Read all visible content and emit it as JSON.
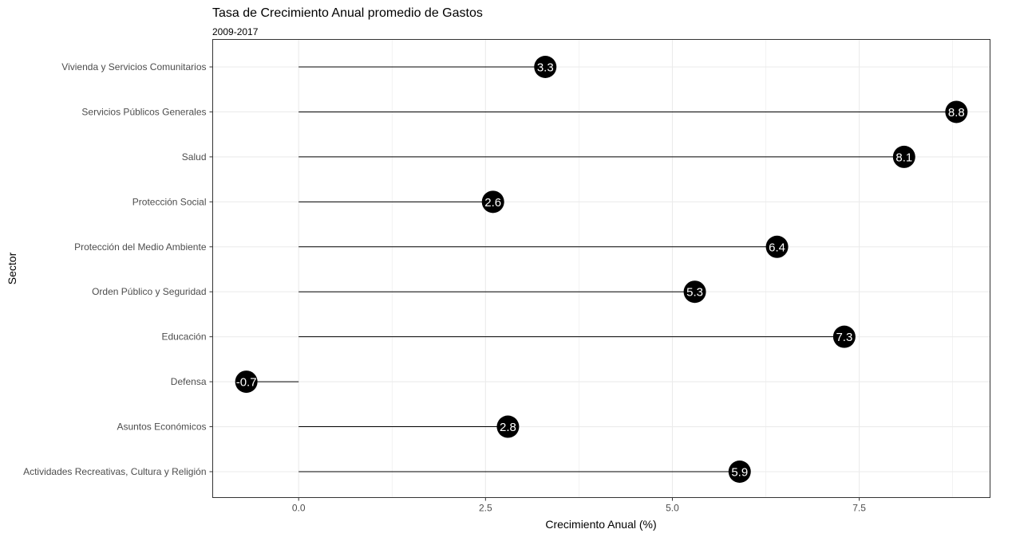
{
  "chart_data": {
    "type": "lollipop",
    "title": "Tasa de Crecimiento Anual promedio de Gastos",
    "subtitle": "2009-2017",
    "xlabel": "Crecimiento Anual (%)",
    "ylabel": "Sector",
    "xlim": [
      -1.15,
      9.25
    ],
    "xticks": [
      0.0,
      2.5,
      5.0,
      7.5
    ],
    "xtick_labels": [
      "0.0",
      "2.5",
      "5.0",
      "7.5"
    ],
    "grid": true,
    "categories": [
      "Vivienda y Servicios Comunitarios",
      "Servicios Públicos Generales",
      "Salud",
      "Protección Social",
      "Protección del Medio Ambiente",
      "Orden Público y Seguridad",
      "Educación",
      "Defensa",
      "Asuntos Económicos",
      "Actividades Recreativas, Cultura y Religión"
    ],
    "values": [
      3.3,
      8.8,
      8.1,
      2.6,
      6.4,
      5.3,
      7.3,
      -0.7,
      2.8,
      5.9
    ],
    "value_labels": [
      "3.3",
      "8.8",
      "8.1",
      "2.6",
      "6.4",
      "5.3",
      "7.3",
      "-0.7",
      "2.8",
      "5.9"
    ],
    "colors": {
      "point": "#000000",
      "segment": "#000000",
      "grid": "#ebebeb",
      "panel_border": "#333333",
      "value_text": "#ffffff"
    }
  }
}
